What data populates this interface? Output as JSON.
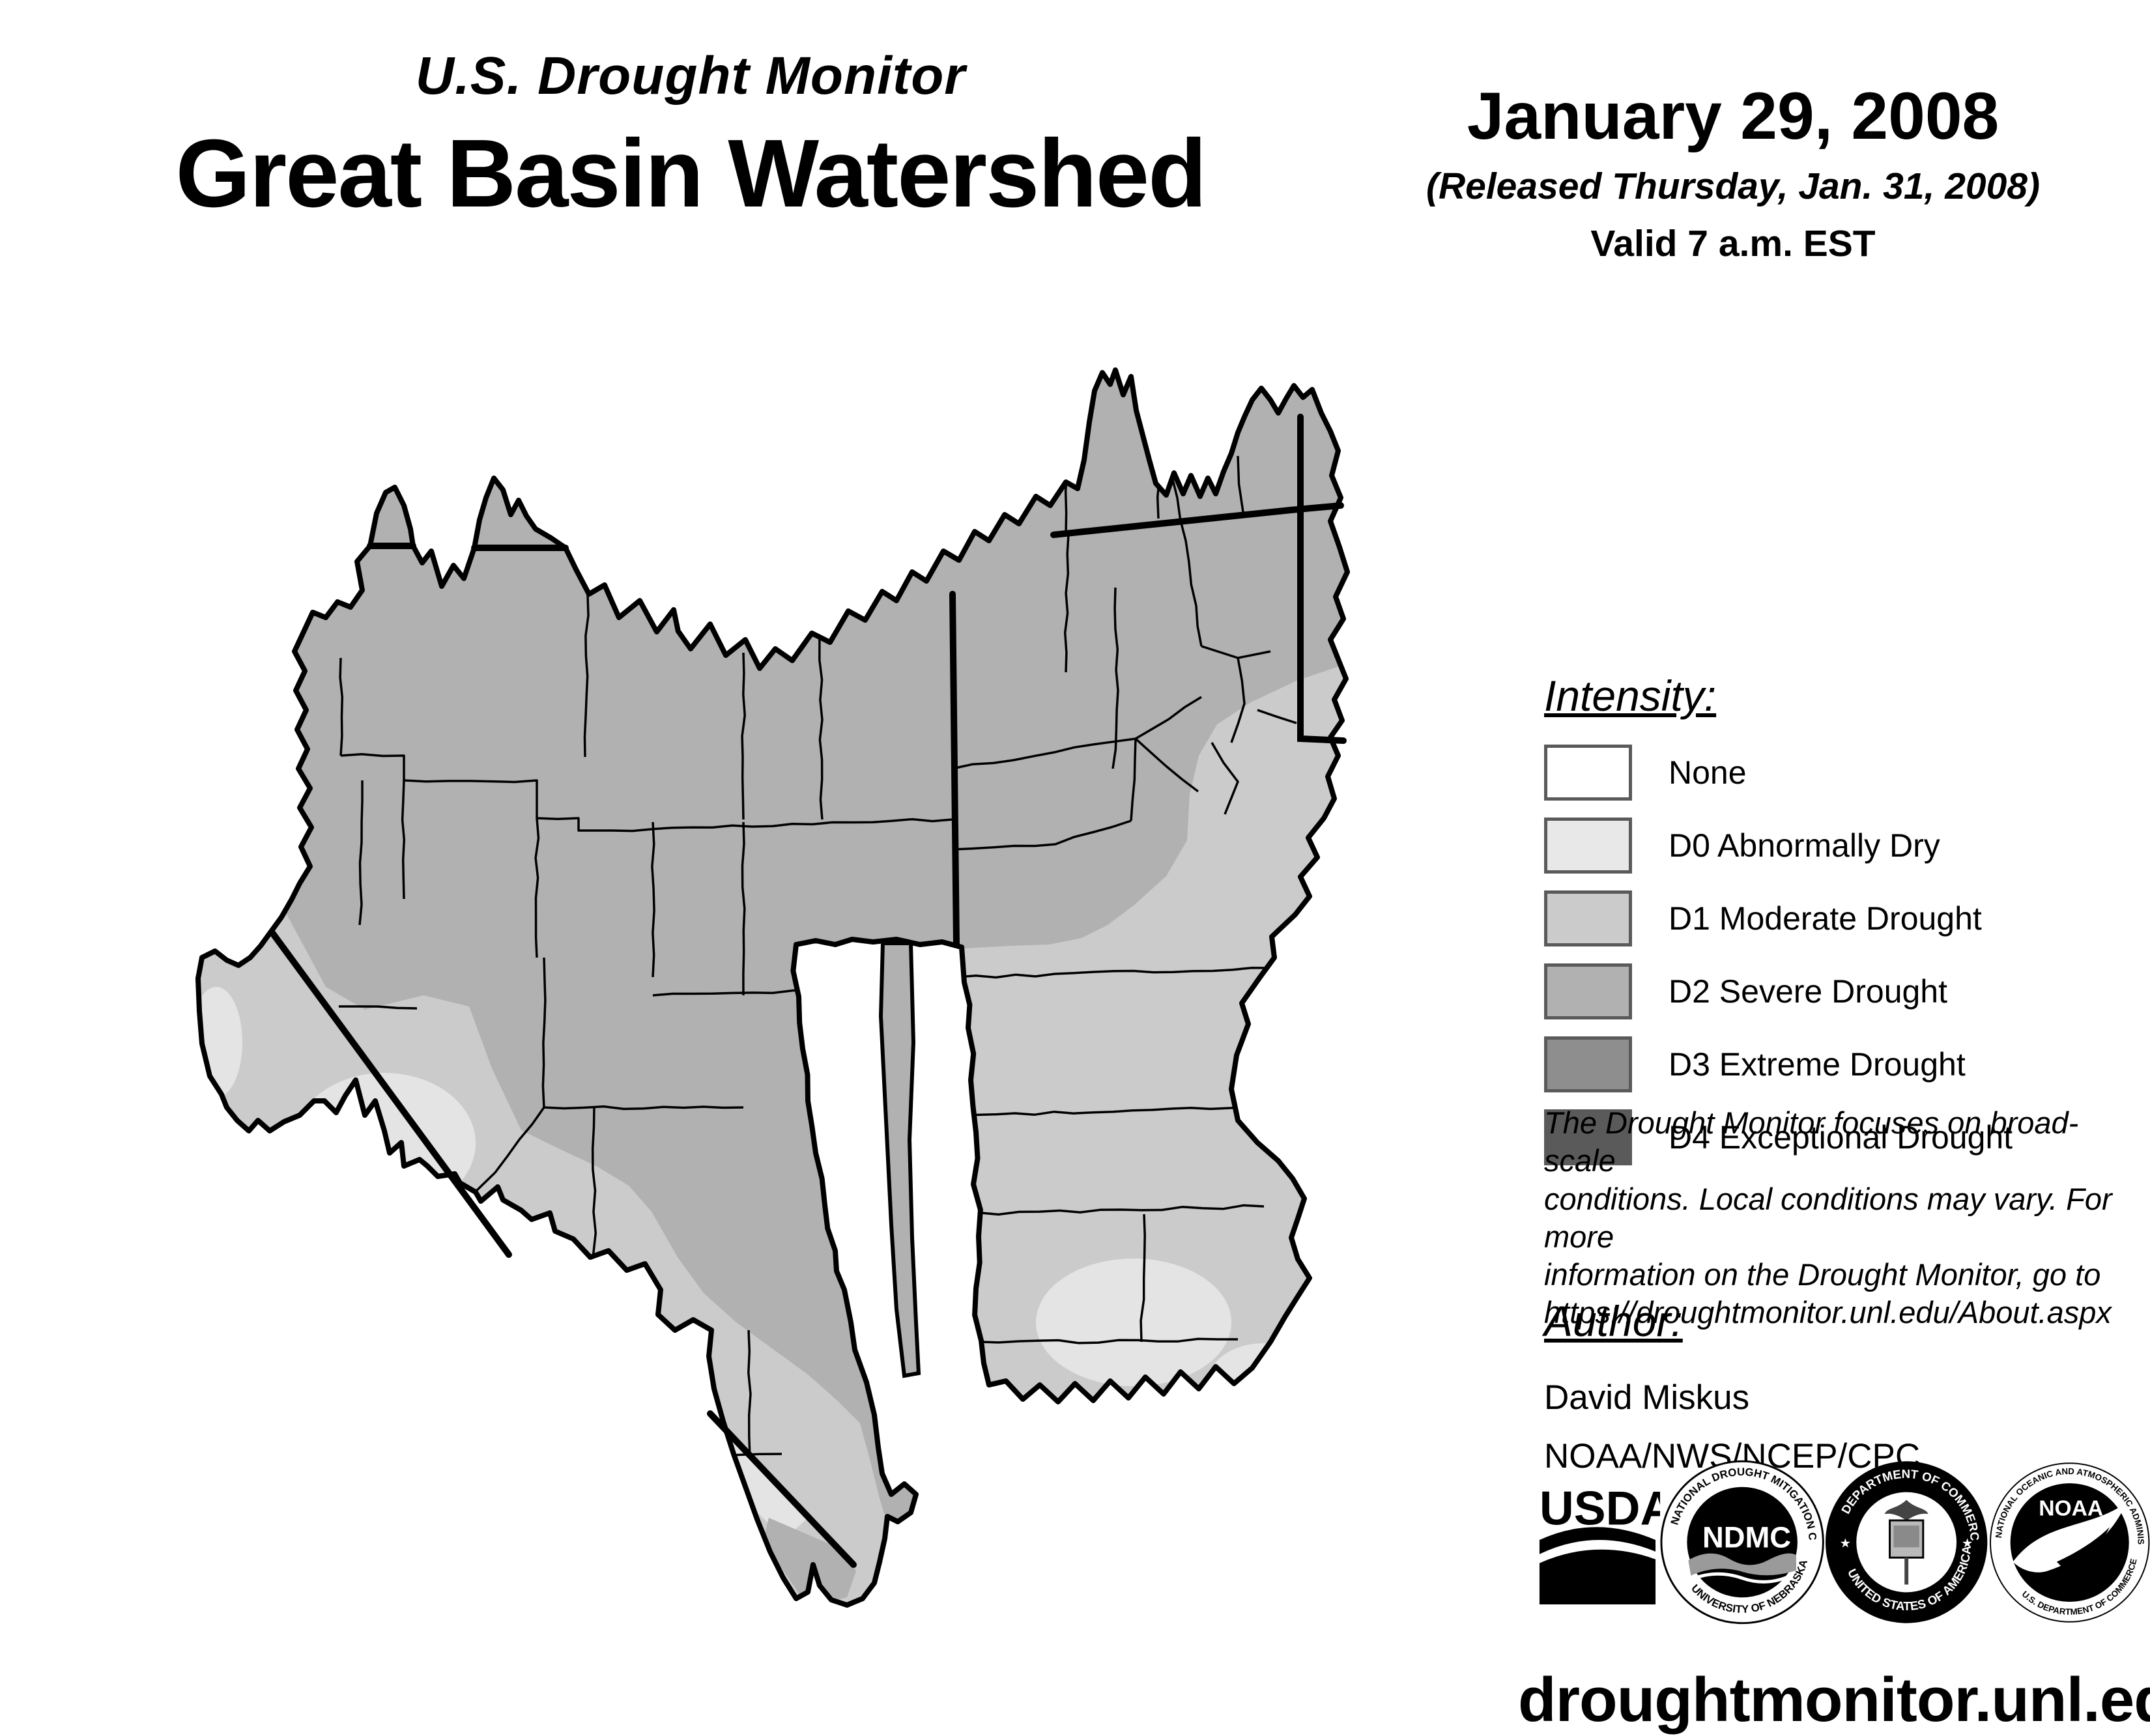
{
  "header": {
    "title_small": "U.S. Drought Monitor",
    "title_large": "Great Basin Watershed"
  },
  "date_block": {
    "date": "January 29, 2008",
    "released": "(Released Thursday, Jan. 31, 2008)",
    "valid": "Valid 7 a.m. EST"
  },
  "legend": {
    "heading": "Intensity:",
    "items": [
      {
        "label": "None",
        "color": "#ffffff"
      },
      {
        "label": "D0 Abnormally Dry",
        "color": "#e8e8e8"
      },
      {
        "label": "D1 Moderate Drought",
        "color": "#cbcbcb"
      },
      {
        "label": "D2 Severe Drought",
        "color": "#b1b1b1"
      },
      {
        "label": "D3 Extreme Drought",
        "color": "#8e8e8e"
      },
      {
        "label": "D4 Exceptional Drought",
        "color": "#5a5a5a"
      }
    ]
  },
  "map": {
    "base_color": "#b1b1b1",
    "d1_color": "#cbcbcb",
    "d0_color": "#e4e4e4",
    "boundary_color": "#000000"
  },
  "disclaimer": {
    "lines": [
      "The Drought Monitor focuses on broad-scale",
      "conditions. Local conditions may vary. For more",
      "information on the Drought Monitor, go to",
      "https://droughtmonitor.unl.edu/About.aspx"
    ]
  },
  "author": {
    "heading": "Author:",
    "name": "David Miskus",
    "org": "NOAA/NWS/NCEP/CPC"
  },
  "logos": {
    "usda": {
      "text": "USDA"
    },
    "ndmc": {
      "text": "NDMC",
      "ring_top": "NATIONAL DROUGHT MITIGATION CENTER",
      "ring_bottom": "UNIVERSITY OF NEBRASKA"
    },
    "doc": {
      "ring_top": "DEPARTMENT OF COMMERCE",
      "ring_bottom": "UNITED STATES OF AMERICA"
    },
    "noaa": {
      "text": "NOAA",
      "ring_top": "NATIONAL OCEANIC AND ATMOSPHERIC ADMINISTRATION",
      "ring_bottom": "U.S. DEPARTMENT OF COMMERCE"
    }
  },
  "footer": {
    "url": "droughtmonitor.unl.edu"
  }
}
